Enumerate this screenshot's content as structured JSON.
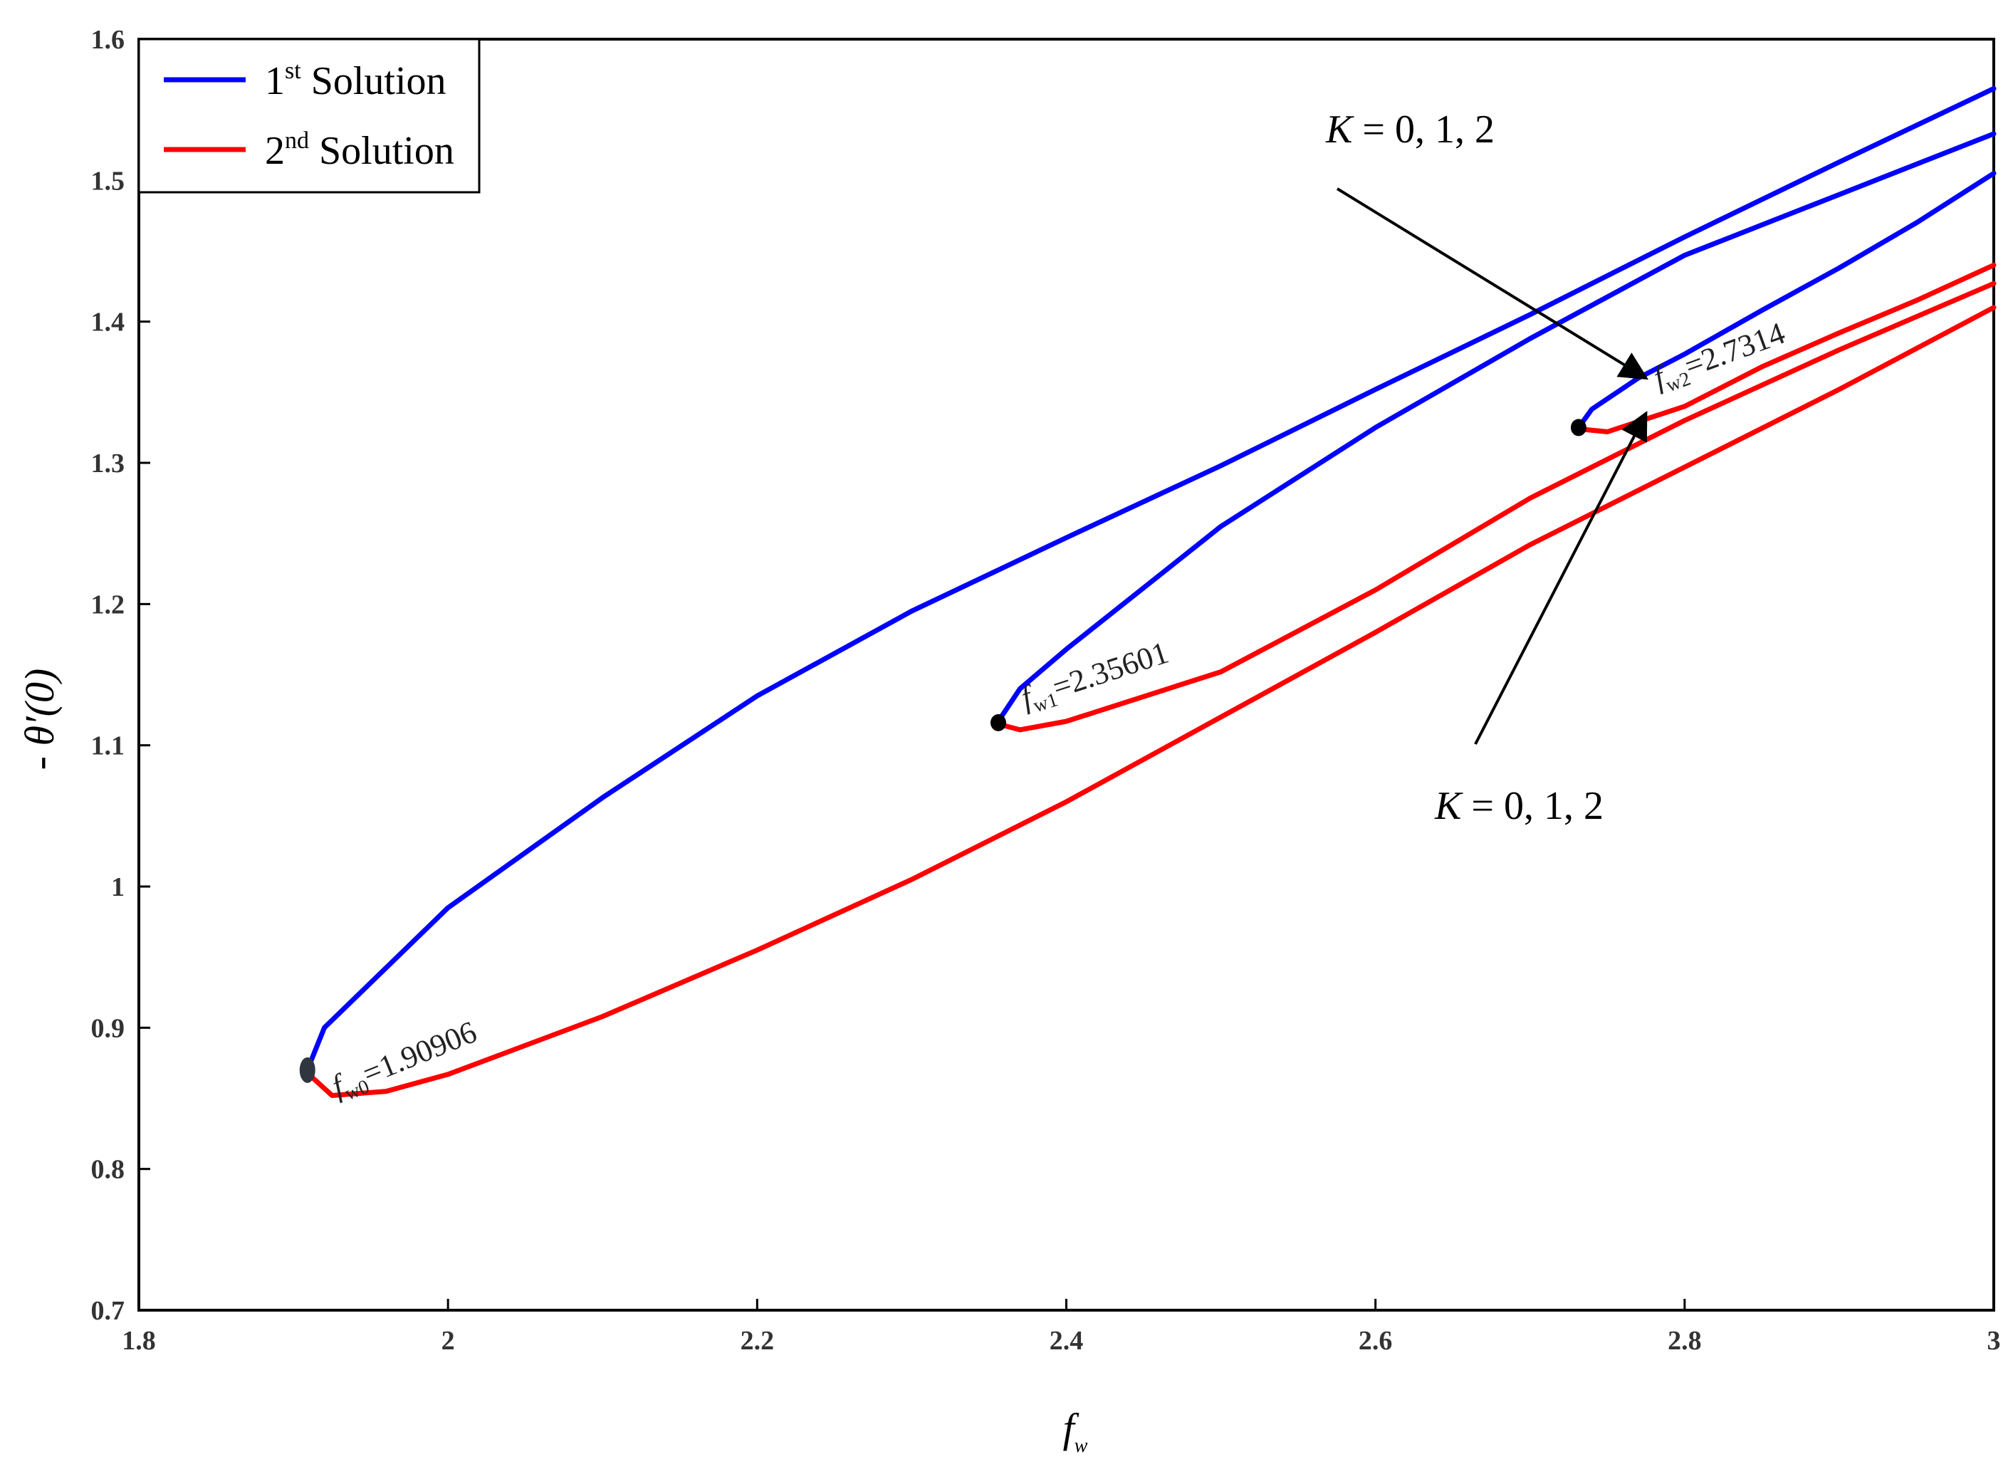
{
  "chart_data": {
    "type": "line",
    "xlabel": "f",
    "xlabel_sub": "w",
    "ylabel": "- θ′(0)",
    "xlim": [
      1.8,
      3.0
    ],
    "ylim": [
      0.7,
      1.6
    ],
    "x_ticks": [
      "1.8",
      "2",
      "2.2",
      "2.4",
      "2.6",
      "2.8",
      "3"
    ],
    "y_ticks": [
      "0.7",
      "0.8",
      "0.9",
      "1",
      "1.1",
      "1.2",
      "1.3",
      "1.4",
      "1.5",
      "1.6"
    ],
    "grid": false,
    "legend": {
      "placement": "top-left",
      "entries": [
        {
          "num": "1",
          "sup": "st",
          "text": " Solution",
          "color": "#0000ff"
        },
        {
          "num": "2",
          "sup": "nd",
          "text": " Solution",
          "color": "#ff0000"
        }
      ]
    },
    "series": [
      {
        "name": "1st Solution",
        "color": "#0000ff",
        "points": [
          [
            1.909,
            0.87
          ],
          [
            1.92,
            0.9
          ],
          [
            2.0,
            0.985
          ],
          [
            2.1,
            1.063
          ],
          [
            2.2,
            1.135
          ],
          [
            2.3,
            1.195
          ],
          [
            2.4,
            1.247
          ],
          [
            2.5,
            1.298
          ],
          [
            2.6,
            1.352
          ],
          [
            2.7,
            1.405
          ],
          [
            2.8,
            1.46
          ],
          [
            2.9,
            1.513
          ],
          [
            3.0,
            1.565
          ]
        ]
      },
      {
        "name": "2nd Solution",
        "color": "#ff0000",
        "points": [
          [
            1.909,
            0.868
          ],
          [
            1.925,
            0.852
          ],
          [
            1.96,
            0.855
          ],
          [
            2.0,
            0.867
          ],
          [
            2.1,
            0.908
          ],
          [
            2.2,
            0.955
          ],
          [
            2.3,
            1.005
          ],
          [
            2.4,
            1.06
          ],
          [
            2.5,
            1.12
          ],
          [
            2.6,
            1.18
          ],
          [
            2.7,
            1.242
          ],
          [
            2.8,
            1.297
          ],
          [
            2.9,
            1.352
          ],
          [
            3.0,
            1.41
          ]
        ]
      },
      {
        "name": "1st Solution",
        "color": "#0000ff",
        "points": [
          [
            2.356,
            1.117
          ],
          [
            2.37,
            1.14
          ],
          [
            2.4,
            1.168
          ],
          [
            2.5,
            1.255
          ],
          [
            2.6,
            1.325
          ],
          [
            2.7,
            1.388
          ],
          [
            2.8,
            1.447
          ],
          [
            2.9,
            1.49
          ],
          [
            3.0,
            1.533
          ]
        ]
      },
      {
        "name": "2nd Solution",
        "color": "#ff0000",
        "points": [
          [
            2.356,
            1.115
          ],
          [
            2.37,
            1.111
          ],
          [
            2.4,
            1.117
          ],
          [
            2.5,
            1.152
          ],
          [
            2.6,
            1.21
          ],
          [
            2.7,
            1.275
          ],
          [
            2.8,
            1.33
          ],
          [
            2.9,
            1.38
          ],
          [
            3.0,
            1.427
          ]
        ]
      },
      {
        "name": "1st Solution",
        "color": "#0000ff",
        "points": [
          [
            2.7314,
            1.325
          ],
          [
            2.74,
            1.338
          ],
          [
            2.77,
            1.36
          ],
          [
            2.8,
            1.377
          ],
          [
            2.85,
            1.408
          ],
          [
            2.9,
            1.438
          ],
          [
            2.95,
            1.47
          ],
          [
            3.0,
            1.505
          ]
        ]
      },
      {
        "name": "2nd Solution",
        "color": "#ff0000",
        "points": [
          [
            2.7314,
            1.324
          ],
          [
            2.75,
            1.322
          ],
          [
            2.8,
            1.34
          ],
          [
            2.85,
            1.368
          ],
          [
            2.9,
            1.392
          ],
          [
            2.95,
            1.415
          ],
          [
            3.0,
            1.44
          ]
        ]
      }
    ],
    "critical_points": [
      {
        "x": 1.90906,
        "y": 0.87,
        "label_base": "f",
        "label_sub": "w0",
        "label_value": "=1.90906"
      },
      {
        "x": 2.35601,
        "y": 1.116,
        "label_base": "f",
        "label_sub": "w1",
        "label_value": "=2.35601"
      },
      {
        "x": 2.7314,
        "y": 1.325,
        "label_base": "f",
        "label_sub": "w2",
        "label_value": "=2.7314"
      }
    ],
    "annotations": [
      {
        "italic": "K",
        "text": " = 0, 1, 2",
        "target": [
          2.775,
          1.36
        ]
      },
      {
        "italic": "K",
        "text": " = 0, 1, 2",
        "target": [
          2.775,
          1.335
        ]
      }
    ]
  }
}
